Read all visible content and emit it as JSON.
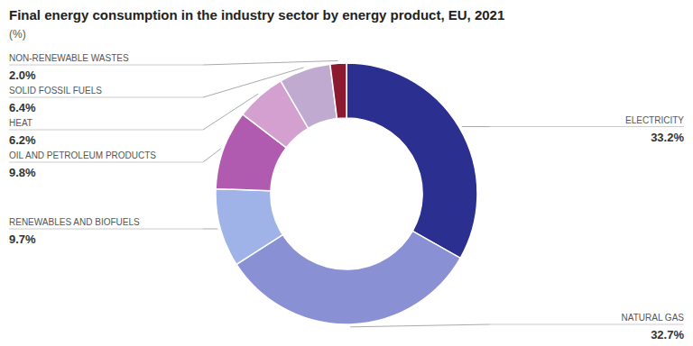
{
  "chart_data": {
    "type": "donut",
    "title": "Final energy consumption in the industry sector by energy product, EU, 2021",
    "subtitle": "(%)",
    "categories": [
      "ELECTRICITY",
      "NATURAL GAS",
      "RENEWABLES AND BIOFUELS",
      "OIL AND PETROLEUM PRODUCTS",
      "HEAT",
      "SOLID FOSSIL FUELS",
      "NON-RENEWABLE WASTES"
    ],
    "values": [
      33.2,
      32.7,
      9.7,
      9.8,
      6.2,
      6.4,
      2.0
    ],
    "value_labels": [
      "33.2%",
      "32.7%",
      "9.7%",
      "9.8%",
      "6.2%",
      "6.4%",
      "2.0%"
    ],
    "colors": [
      "#2b3090",
      "#8a90d4",
      "#9fb3e8",
      "#b05ab0",
      "#d4a0d0",
      "#c0aad0",
      "#8b1a30"
    ],
    "data_labels": true
  }
}
